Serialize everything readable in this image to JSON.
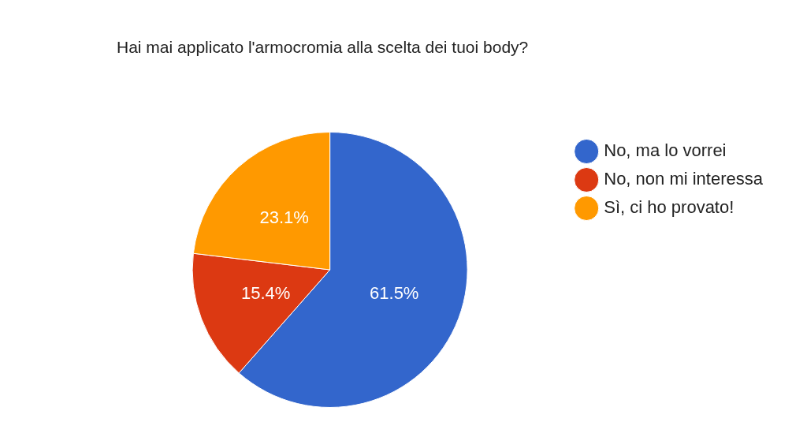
{
  "chart_data": {
    "type": "pie",
    "title": "Hai mai applicato l'armocromia alla scelta dei tuoi body?",
    "categories": [
      "No, ma lo vorrei",
      "No, non mi interessa",
      "Sì, ci ho provato!"
    ],
    "values": [
      61.5,
      15.4,
      23.1
    ],
    "value_labels": [
      "61.5%",
      "15.4%",
      "23.1%"
    ],
    "colors": [
      "#3366cc",
      "#dc3912",
      "#ff9900"
    ],
    "legend": "right"
  }
}
